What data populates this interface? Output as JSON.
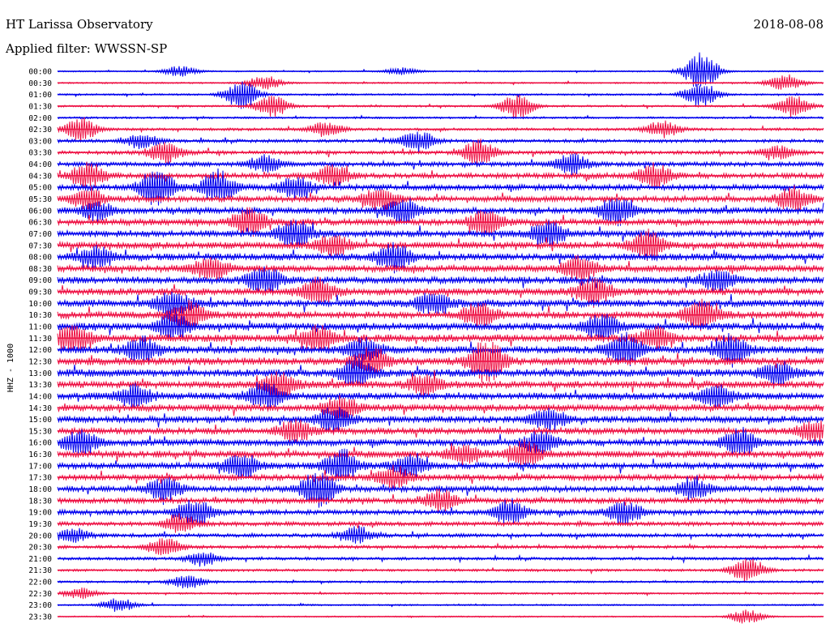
{
  "header": {
    "title": "HT Larissa Observatory",
    "filter": "Applied filter: WWSSN-SP",
    "date": "2018-08-08"
  },
  "channel_label": "HHZ - 1000",
  "colors": {
    "even_trace": "#0000ee",
    "odd_trace": "#ee1144",
    "text": "#000000"
  },
  "chart_data": {
    "type": "line",
    "title": "",
    "xlabel": "",
    "ylabel": "HHZ - 1000",
    "row_labels": [
      "00:00",
      "00:30",
      "01:00",
      "01:30",
      "02:00",
      "02:30",
      "03:00",
      "03:30",
      "04:00",
      "04:30",
      "05:00",
      "05:30",
      "06:00",
      "06:30",
      "07:00",
      "07:30",
      "08:00",
      "08:30",
      "09:00",
      "09:30",
      "10:00",
      "10:30",
      "11:00",
      "11:30",
      "12:00",
      "12:30",
      "13:00",
      "13:30",
      "14:00",
      "14:30",
      "15:00",
      "15:30",
      "16:00",
      "16:30",
      "17:00",
      "17:30",
      "18:00",
      "18:30",
      "19:00",
      "19:30",
      "20:00",
      "20:30",
      "21:00",
      "21:30",
      "22:00",
      "22:30",
      "23:00",
      "23:30"
    ],
    "row_noise": [
      0.6,
      0.7,
      0.8,
      0.9,
      0.9,
      1.2,
      1.5,
      1.7,
      2.0,
      2.4,
      2.6,
      2.6,
      2.8,
      2.8,
      3.0,
      3.0,
      3.1,
      3.1,
      3.2,
      3.2,
      3.3,
      3.2,
      3.3,
      3.4,
      3.4,
      3.5,
      3.4,
      3.2,
      3.2,
      3.1,
      3.0,
      2.9,
      3.0,
      3.0,
      2.8,
      2.7,
      2.6,
      2.4,
      2.2,
      1.9,
      1.7,
      1.5,
      1.3,
      1.1,
      0.9,
      0.8,
      0.7,
      0.6
    ],
    "events": [
      {
        "row": 0,
        "frac": 0.16,
        "amp": 6
      },
      {
        "row": 0,
        "frac": 0.45,
        "amp": 4
      },
      {
        "row": 0,
        "frac": 0.84,
        "amp": 22
      },
      {
        "row": 1,
        "frac": 0.27,
        "amp": 8
      },
      {
        "row": 1,
        "frac": 0.95,
        "amp": 10
      },
      {
        "row": 2,
        "frac": 0.24,
        "amp": 16
      },
      {
        "row": 2,
        "frac": 0.84,
        "amp": 14
      },
      {
        "row": 3,
        "frac": 0.28,
        "amp": 12
      },
      {
        "row": 3,
        "frac": 0.6,
        "amp": 14
      },
      {
        "row": 3,
        "frac": 0.96,
        "amp": 12
      },
      {
        "row": 5,
        "frac": 0.03,
        "amp": 14
      },
      {
        "row": 5,
        "frac": 0.35,
        "amp": 8
      },
      {
        "row": 5,
        "frac": 0.79,
        "amp": 10
      },
      {
        "row": 6,
        "frac": 0.11,
        "amp": 8
      },
      {
        "row": 6,
        "frac": 0.47,
        "amp": 12
      },
      {
        "row": 7,
        "frac": 0.14,
        "amp": 12
      },
      {
        "row": 7,
        "frac": 0.55,
        "amp": 14
      },
      {
        "row": 7,
        "frac": 0.94,
        "amp": 8
      },
      {
        "row": 8,
        "frac": 0.27,
        "amp": 10
      },
      {
        "row": 8,
        "frac": 0.67,
        "amp": 12
      },
      {
        "row": 9,
        "frac": 0.04,
        "amp": 14
      },
      {
        "row": 9,
        "frac": 0.36,
        "amp": 12
      },
      {
        "row": 9,
        "frac": 0.78,
        "amp": 14
      },
      {
        "row": 10,
        "frac": 0.13,
        "amp": 24
      },
      {
        "row": 10,
        "frac": 0.21,
        "amp": 18
      },
      {
        "row": 10,
        "frac": 0.31,
        "amp": 12
      },
      {
        "row": 11,
        "frac": 0.04,
        "amp": 12
      },
      {
        "row": 11,
        "frac": 0.42,
        "amp": 14
      },
      {
        "row": 11,
        "frac": 0.96,
        "amp": 14
      },
      {
        "row": 12,
        "frac": 0.05,
        "amp": 10
      },
      {
        "row": 12,
        "frac": 0.45,
        "amp": 14
      },
      {
        "row": 12,
        "frac": 0.73,
        "amp": 16
      },
      {
        "row": 13,
        "frac": 0.25,
        "amp": 16
      },
      {
        "row": 13,
        "frac": 0.56,
        "amp": 14
      },
      {
        "row": 14,
        "frac": 0.31,
        "amp": 14
      },
      {
        "row": 14,
        "frac": 0.64,
        "amp": 14
      },
      {
        "row": 15,
        "frac": 0.36,
        "amp": 12
      },
      {
        "row": 15,
        "frac": 0.77,
        "amp": 16
      },
      {
        "row": 16,
        "frac": 0.05,
        "amp": 12
      },
      {
        "row": 16,
        "frac": 0.44,
        "amp": 16
      },
      {
        "row": 17,
        "frac": 0.2,
        "amp": 12
      },
      {
        "row": 17,
        "frac": 0.68,
        "amp": 14
      },
      {
        "row": 18,
        "frac": 0.27,
        "amp": 16
      },
      {
        "row": 18,
        "frac": 0.86,
        "amp": 12
      },
      {
        "row": 19,
        "frac": 0.34,
        "amp": 14
      },
      {
        "row": 19,
        "frac": 0.7,
        "amp": 16
      },
      {
        "row": 20,
        "frac": 0.15,
        "amp": 14
      },
      {
        "row": 20,
        "frac": 0.49,
        "amp": 12
      },
      {
        "row": 21,
        "frac": 0.17,
        "amp": 16
      },
      {
        "row": 21,
        "frac": 0.55,
        "amp": 14
      },
      {
        "row": 21,
        "frac": 0.84,
        "amp": 18
      },
      {
        "row": 22,
        "frac": 0.15,
        "amp": 14
      },
      {
        "row": 22,
        "frac": 0.71,
        "amp": 16
      },
      {
        "row": 23,
        "frac": 0.02,
        "amp": 16
      },
      {
        "row": 23,
        "frac": 0.34,
        "amp": 14
      },
      {
        "row": 23,
        "frac": 0.78,
        "amp": 12
      },
      {
        "row": 24,
        "frac": 0.11,
        "amp": 14
      },
      {
        "row": 24,
        "frac": 0.4,
        "amp": 12
      },
      {
        "row": 24,
        "frac": 0.74,
        "amp": 18
      },
      {
        "row": 24,
        "frac": 0.88,
        "amp": 16
      },
      {
        "row": 25,
        "frac": 0.41,
        "amp": 14
      },
      {
        "row": 25,
        "frac": 0.56,
        "amp": 26
      },
      {
        "row": 26,
        "frac": 0.39,
        "amp": 16
      },
      {
        "row": 26,
        "frac": 0.94,
        "amp": 12
      },
      {
        "row": 27,
        "frac": 0.29,
        "amp": 14
      },
      {
        "row": 27,
        "frac": 0.48,
        "amp": 12
      },
      {
        "row": 28,
        "frac": 0.1,
        "amp": 12
      },
      {
        "row": 28,
        "frac": 0.27,
        "amp": 16
      },
      {
        "row": 28,
        "frac": 0.86,
        "amp": 12
      },
      {
        "row": 29,
        "frac": 0.37,
        "amp": 14
      },
      {
        "row": 30,
        "frac": 0.36,
        "amp": 14
      },
      {
        "row": 30,
        "frac": 0.64,
        "amp": 12
      },
      {
        "row": 31,
        "frac": 0.31,
        "amp": 12
      },
      {
        "row": 31,
        "frac": 0.99,
        "amp": 12
      },
      {
        "row": 32,
        "frac": 0.03,
        "amp": 14
      },
      {
        "row": 32,
        "frac": 0.63,
        "amp": 12
      },
      {
        "row": 32,
        "frac": 0.89,
        "amp": 16
      },
      {
        "row": 33,
        "frac": 0.53,
        "amp": 12
      },
      {
        "row": 33,
        "frac": 0.61,
        "amp": 16
      },
      {
        "row": 34,
        "frac": 0.24,
        "amp": 14
      },
      {
        "row": 34,
        "frac": 0.37,
        "amp": 18
      },
      {
        "row": 34,
        "frac": 0.46,
        "amp": 12
      },
      {
        "row": 35,
        "frac": 0.44,
        "amp": 12
      },
      {
        "row": 36,
        "frac": 0.14,
        "amp": 12
      },
      {
        "row": 36,
        "frac": 0.34,
        "amp": 22
      },
      {
        "row": 36,
        "frac": 0.83,
        "amp": 12
      },
      {
        "row": 37,
        "frac": 0.5,
        "amp": 12
      },
      {
        "row": 38,
        "frac": 0.18,
        "amp": 16
      },
      {
        "row": 38,
        "frac": 0.59,
        "amp": 14
      },
      {
        "row": 38,
        "frac": 0.74,
        "amp": 14
      },
      {
        "row": 39,
        "frac": 0.16,
        "amp": 10
      },
      {
        "row": 40,
        "frac": 0.02,
        "amp": 8
      },
      {
        "row": 40,
        "frac": 0.39,
        "amp": 10
      },
      {
        "row": 41,
        "frac": 0.14,
        "amp": 10
      },
      {
        "row": 42,
        "frac": 0.19,
        "amp": 8
      },
      {
        "row": 43,
        "frac": 0.9,
        "amp": 14
      },
      {
        "row": 44,
        "frac": 0.17,
        "amp": 8
      },
      {
        "row": 45,
        "frac": 0.03,
        "amp": 6
      },
      {
        "row": 46,
        "frac": 0.08,
        "amp": 8
      },
      {
        "row": 47,
        "frac": 0.9,
        "amp": 8
      }
    ]
  }
}
